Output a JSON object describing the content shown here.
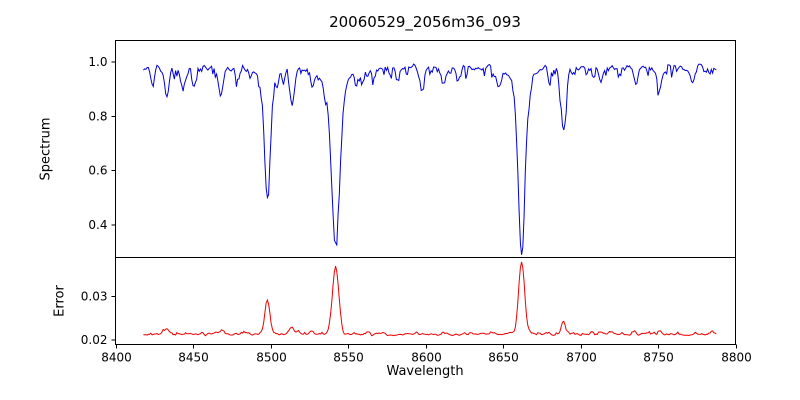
{
  "title": "20060529_2056m36_093",
  "xlabel": "Wavelength",
  "chart_data": [
    {
      "type": "line",
      "name": "spectrum",
      "ylabel": "Spectrum",
      "color": "#0000dd",
      "xlim": [
        8400,
        8800
      ],
      "ylim": [
        0.28,
        1.08
      ],
      "x_range": [
        8418,
        8788
      ],
      "xticks": [
        8400,
        8450,
        8500,
        8550,
        8600,
        8650,
        8700,
        8750,
        8800
      ],
      "xtick_labels": [
        "8400",
        "8450",
        "8500",
        "8550",
        "8600",
        "8650",
        "8700",
        "8750",
        "8800"
      ],
      "yticks": [
        0.4,
        0.6,
        0.8,
        1.0
      ],
      "ytick_labels": [
        "0.4",
        "0.6",
        "0.8",
        "1.0"
      ],
      "continuum": 0.98,
      "noise": {
        "sym": 0.016,
        "dip": 0.08
      },
      "absorption_lines": [
        {
          "center": 8424,
          "depth": 0.06,
          "sigma": 1.2
        },
        {
          "center": 8433,
          "depth": 0.1,
          "sigma": 1.5
        },
        {
          "center": 8443,
          "depth": 0.06,
          "sigma": 1.2
        },
        {
          "center": 8468,
          "depth": 0.09,
          "sigma": 1.5
        },
        {
          "center": 8498,
          "depth": 0.44,
          "sigma": 1.8
        },
        {
          "center": 8498,
          "depth": 0.05,
          "sigma": 5.0
        },
        {
          "center": 8514,
          "depth": 0.12,
          "sigma": 1.5
        },
        {
          "center": 8527,
          "depth": 0.06,
          "sigma": 1.2
        },
        {
          "center": 8542,
          "depth": 0.55,
          "sigma": 2.6
        },
        {
          "center": 8542,
          "depth": 0.09,
          "sigma": 7.0
        },
        {
          "center": 8582,
          "depth": 0.05,
          "sigma": 1.2
        },
        {
          "center": 8598,
          "depth": 0.07,
          "sigma": 1.5
        },
        {
          "center": 8611,
          "depth": 0.05,
          "sigma": 1.2
        },
        {
          "center": 8621,
          "depth": 0.05,
          "sigma": 1.2
        },
        {
          "center": 8648,
          "depth": 0.05,
          "sigma": 1.2
        },
        {
          "center": 8662,
          "depth": 0.57,
          "sigma": 2.2
        },
        {
          "center": 8662,
          "depth": 0.08,
          "sigma": 6.0
        },
        {
          "center": 8689,
          "depth": 0.24,
          "sigma": 1.6
        },
        {
          "center": 8713,
          "depth": 0.05,
          "sigma": 1.2
        },
        {
          "center": 8736,
          "depth": 0.05,
          "sigma": 1.2
        },
        {
          "center": 8751,
          "depth": 0.07,
          "sigma": 1.3
        },
        {
          "center": 8772,
          "depth": 0.05,
          "sigma": 1.2
        }
      ]
    },
    {
      "type": "line",
      "name": "error",
      "ylabel": "Error",
      "color": "#ee0000",
      "xlim": [
        8400,
        8800
      ],
      "ylim": [
        0.019,
        0.039
      ],
      "x_range": [
        8418,
        8788
      ],
      "yticks": [
        0.02,
        0.03
      ],
      "ytick_labels": [
        "0.02",
        "0.03"
      ],
      "baseline": 0.0213,
      "noise": {
        "sym": 0.0004,
        "spike": 0.0009
      },
      "peaks": [
        {
          "center": 8433,
          "height": 0.0012,
          "sigma": 1.5
        },
        {
          "center": 8468,
          "height": 0.001,
          "sigma": 1.5
        },
        {
          "center": 8498,
          "height": 0.0078,
          "sigma": 1.6
        },
        {
          "center": 8514,
          "height": 0.0014,
          "sigma": 1.3
        },
        {
          "center": 8527,
          "height": 0.0008,
          "sigma": 1.2
        },
        {
          "center": 8542,
          "height": 0.0158,
          "sigma": 2.0
        },
        {
          "center": 8662,
          "height": 0.0168,
          "sigma": 1.9
        },
        {
          "center": 8689,
          "height": 0.003,
          "sigma": 1.3
        },
        {
          "center": 8751,
          "height": 0.0008,
          "sigma": 1.2
        }
      ]
    }
  ]
}
